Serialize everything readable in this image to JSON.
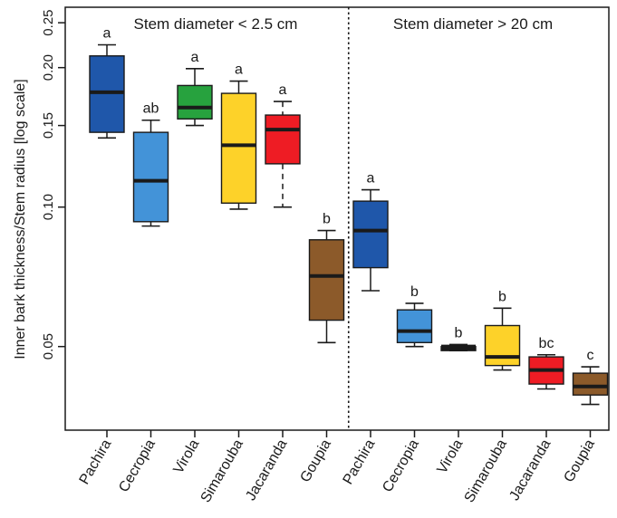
{
  "chart_data": {
    "type": "box",
    "ylabel": "Inner bark  thickness/Stem radius [log scale]",
    "yscale": "log",
    "ylim": [
      0.033,
      0.27
    ],
    "yticks": [
      {
        "value": 0.05,
        "label": "0.05"
      },
      {
        "value": 0.1,
        "label": "0.10"
      },
      {
        "value": 0.15,
        "label": "0.15"
      },
      {
        "value": 0.2,
        "label": "0.20"
      },
      {
        "value": 0.25,
        "label": "0.25"
      }
    ],
    "panels": [
      {
        "label": "Stem diameter < 2.5 cm"
      },
      {
        "label": "Stem diameter > 20 cm"
      }
    ],
    "categories": [
      "Pachira",
      "Cecropia",
      "Virola",
      "Simarouba",
      "Jacaranda",
      "Goupia",
      "Pachira",
      "Cecropia",
      "Virola",
      "Simarouba",
      "Jacaranda",
      "Goupia"
    ],
    "boxes": [
      {
        "name": "Pachira",
        "panel": 0,
        "color": "#1f57aa",
        "whisker_low": 0.141,
        "q1": 0.145,
        "median": 0.177,
        "q3": 0.212,
        "whisker_high": 0.224,
        "letter": "a",
        "dashed": false
      },
      {
        "name": "Cecropia",
        "panel": 0,
        "color": "#4393d8",
        "whisker_low": 0.091,
        "q1": 0.093,
        "median": 0.114,
        "q3": 0.145,
        "whisker_high": 0.154,
        "letter": "ab",
        "dashed": false
      },
      {
        "name": "Virola",
        "panel": 0,
        "color": "#27a23e",
        "whisker_low": 0.15,
        "q1": 0.155,
        "median": 0.164,
        "q3": 0.183,
        "whisker_high": 0.199,
        "letter": "a",
        "dashed": false
      },
      {
        "name": "Simarouba",
        "panel": 0,
        "color": "#fdd229",
        "whisker_low": 0.099,
        "q1": 0.102,
        "median": 0.136,
        "q3": 0.176,
        "whisker_high": 0.187,
        "letter": "a",
        "dashed": false
      },
      {
        "name": "Jacaranda",
        "panel": 0,
        "color": "#ee1c24",
        "whisker_low": 0.1,
        "q1": 0.124,
        "median": 0.147,
        "q3": 0.158,
        "whisker_high": 0.169,
        "letter": "a",
        "dashed": true
      },
      {
        "name": "Goupia",
        "panel": 0,
        "color": "#8c5a2a",
        "whisker_low": 0.051,
        "q1": 0.057,
        "median": 0.071,
        "q3": 0.085,
        "whisker_high": 0.089,
        "letter": "b",
        "dashed": false
      },
      {
        "name": "Pachira",
        "panel": 1,
        "color": "#1f57aa",
        "whisker_low": 0.066,
        "q1": 0.074,
        "median": 0.089,
        "q3": 0.103,
        "whisker_high": 0.109,
        "letter": "a",
        "dashed": false
      },
      {
        "name": "Cecropia",
        "panel": 1,
        "color": "#4393d8",
        "whisker_low": 0.05,
        "q1": 0.051,
        "median": 0.054,
        "q3": 0.06,
        "whisker_high": 0.062,
        "letter": "b",
        "dashed": false
      },
      {
        "name": "Virola",
        "panel": 1,
        "color": "#1a1a1a",
        "whisker_low": 0.049,
        "q1": 0.049,
        "median": 0.05,
        "q3": 0.05,
        "whisker_high": 0.0505,
        "letter": "b",
        "dashed": false
      },
      {
        "name": "Simarouba",
        "panel": 1,
        "color": "#fdd229",
        "whisker_low": 0.0445,
        "q1": 0.0455,
        "median": 0.0475,
        "q3": 0.0555,
        "whisker_high": 0.0605,
        "letter": "b",
        "dashed": false
      },
      {
        "name": "Jacaranda",
        "panel": 1,
        "color": "#ee1c24",
        "whisker_low": 0.0405,
        "q1": 0.0415,
        "median": 0.0445,
        "q3": 0.0475,
        "whisker_high": 0.048,
        "letter": "bc",
        "dashed": false
      },
      {
        "name": "Goupia",
        "panel": 1,
        "color": "#8c5a2a",
        "whisker_low": 0.0375,
        "q1": 0.0393,
        "median": 0.041,
        "q3": 0.0438,
        "whisker_high": 0.0452,
        "letter": "c",
        "dashed": false
      }
    ]
  }
}
